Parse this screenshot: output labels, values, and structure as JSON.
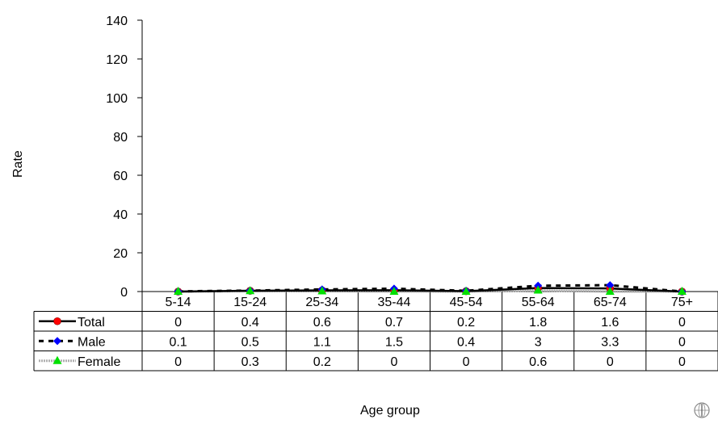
{
  "chart_data": {
    "type": "line",
    "title": "",
    "xlabel": "Age group",
    "ylabel": "Rate",
    "ylim": [
      0,
      140
    ],
    "yticks": [
      0,
      20,
      40,
      60,
      80,
      100,
      120,
      140
    ],
    "categories": [
      "5-14",
      "15-24",
      "25-34",
      "35-44",
      "45-54",
      "55-64",
      "65-74",
      "75+"
    ],
    "grid": false,
    "legend": "data-table",
    "series": [
      {
        "name": "Total",
        "values": [
          0,
          0.4,
          0.6,
          0.7,
          0.2,
          1.8,
          1.6,
          0
        ],
        "display": [
          "0",
          "0.4",
          "0.6",
          "0.7",
          "0.2",
          "1.8",
          "1.6",
          "0"
        ],
        "color": "#000000",
        "marker": "circle",
        "marker_color": "#ff0000",
        "line_style": "solid"
      },
      {
        "name": "Male",
        "values": [
          0.1,
          0.5,
          1.1,
          1.5,
          0.4,
          3,
          3.3,
          0
        ],
        "display": [
          "0.1",
          "0.5",
          "1.1",
          "1.5",
          "0.4",
          "3",
          "3.3",
          "0"
        ],
        "color": "#000000",
        "marker": "diamond",
        "marker_color": "#0000ff",
        "line_style": "dashed"
      },
      {
        "name": "Female",
        "values": [
          0,
          0.3,
          0.2,
          0,
          0,
          0.6,
          0,
          0
        ],
        "display": [
          "0",
          "0.3",
          "0.2",
          "0",
          "0",
          "0.6",
          "0",
          "0"
        ],
        "color": "#b0b0b0",
        "marker": "triangle",
        "marker_color": "#00e000",
        "line_style": "dotted"
      }
    ]
  },
  "logo": {
    "icon": "who-emblem-icon"
  }
}
